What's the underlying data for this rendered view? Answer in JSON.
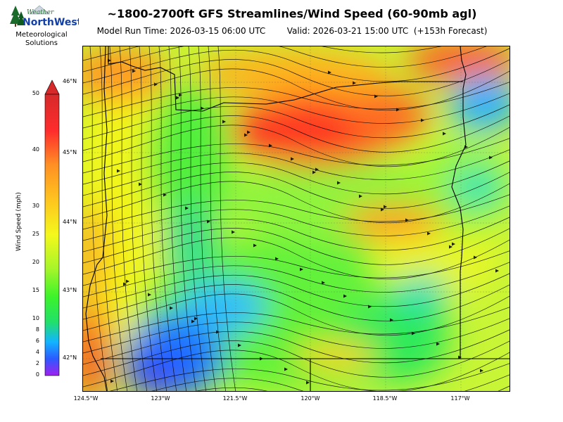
{
  "title": "~1800-2700ft GFS Streamlines/Wind Speed (60-90mb agl)",
  "subtitle": {
    "model_run": "Model Run Time: 2026-03-15 06:00 UTC",
    "valid": "Valid: 2026-03-21 15:00 UTC  (+153h Forecast)"
  },
  "logo": {
    "word1": "Weather",
    "word2": "NorthWest",
    "line1": "Meteorological",
    "line2": "Solutions"
  },
  "colorbar": {
    "label": "Wind Speed (mph)",
    "ticks": [
      "0",
      "2",
      "4",
      "6",
      "8",
      "10",
      "15",
      "20",
      "25",
      "30",
      "40",
      "50"
    ],
    "colors": [
      "#a020f0",
      "#2c5aff",
      "#12b5ff",
      "#22e06a",
      "#3cf32a",
      "#a6f52a",
      "#f4f81c",
      "#ffc21f",
      "#ff8f24",
      "#ff2c2c",
      "#d62a2a"
    ]
  },
  "map": {
    "lat_labels": [
      "46°N",
      "45°N",
      "44°N",
      "43°N",
      "42°N"
    ],
    "lon_labels": [
      "124.5°W",
      "123°W",
      "121.5°W",
      "120°W",
      "118.5°W",
      "117°W"
    ]
  }
}
